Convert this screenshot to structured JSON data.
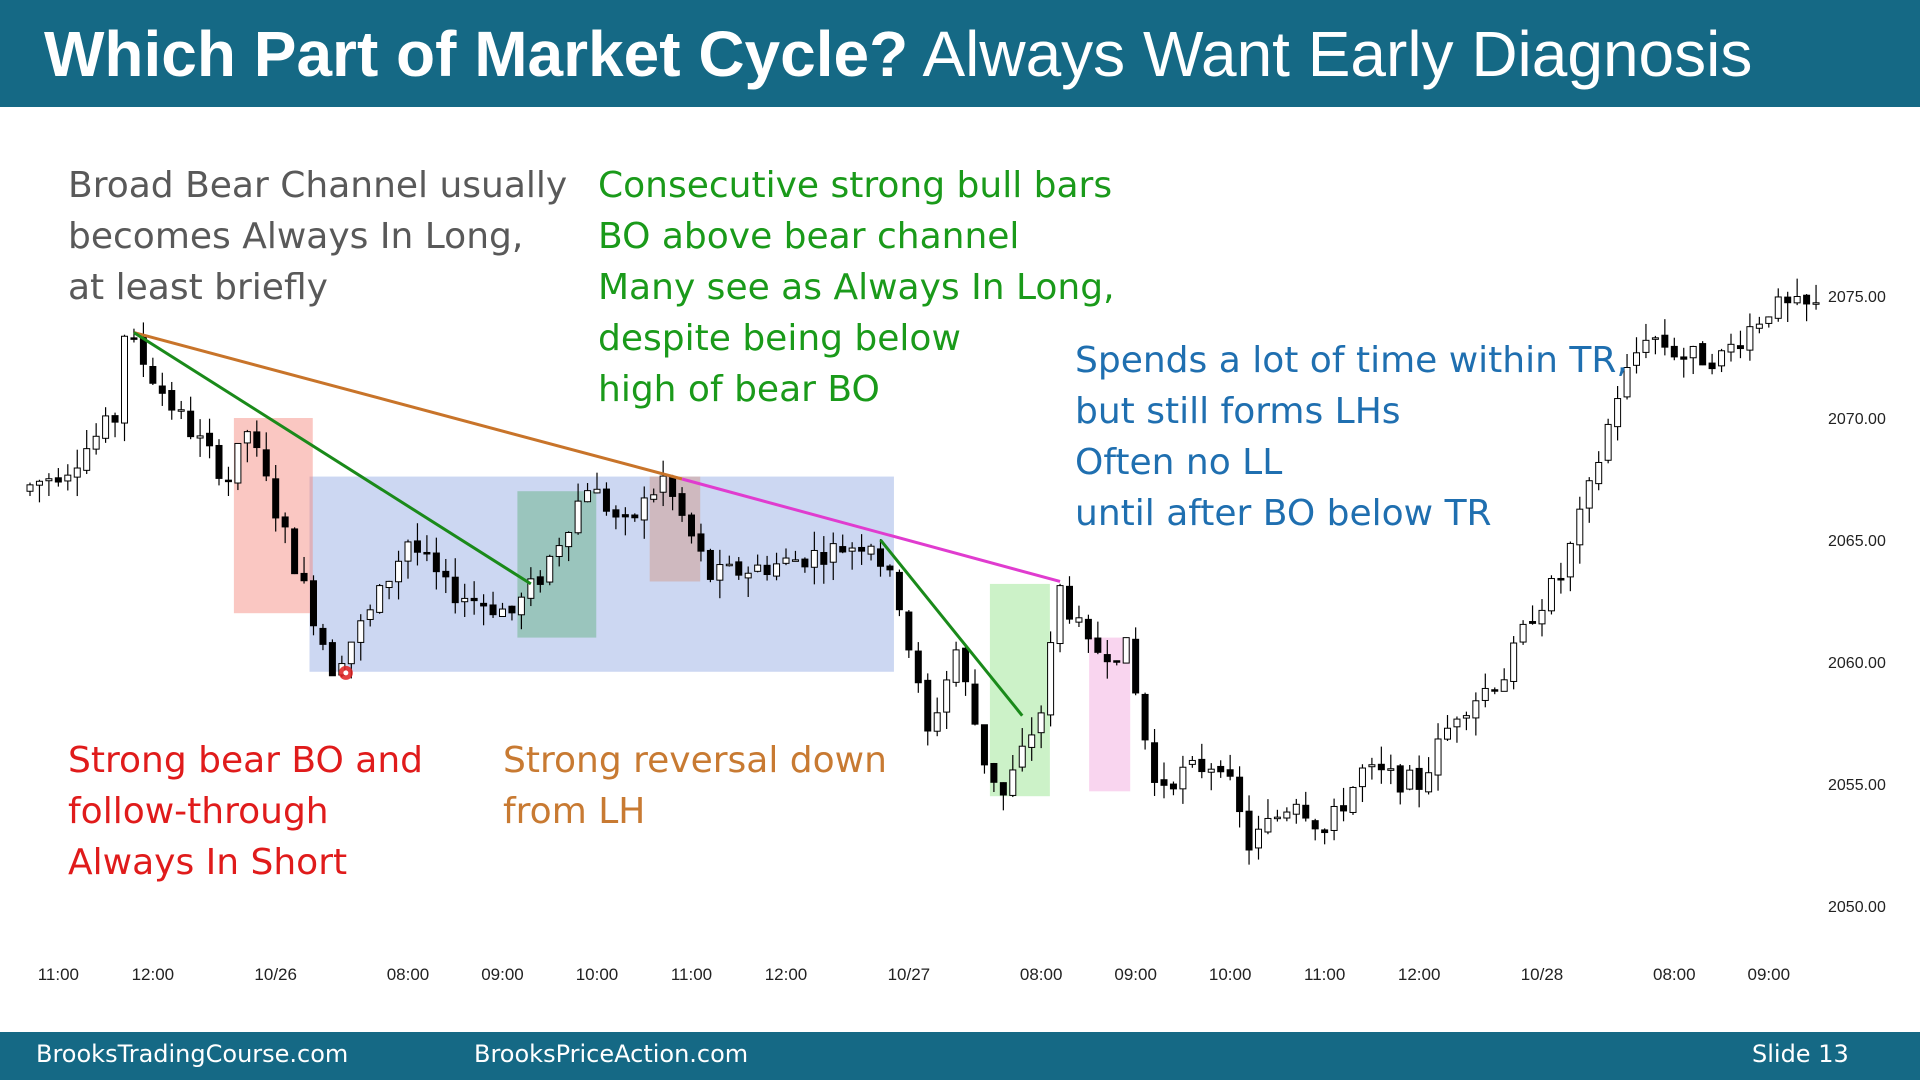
{
  "slide": {
    "title_bold": "Which Part of Market Cycle?",
    "title_rest": "Always Want Early Diagnosis",
    "footer_left": "BrooksTradingCourse.com",
    "footer_center": "BrooksPriceAction.com",
    "footer_right": "Slide  13"
  },
  "annotations": [
    {
      "lines": [
        "Broad Bear Channel usually",
        "becomes Always In Long,",
        "at least briefly"
      ],
      "color": "#595959"
    },
    {
      "lines": [
        "Consecutive strong bull bars",
        "BO above bear channel",
        "Many see as Always In Long,",
        "despite being below",
        "high of bear BO"
      ],
      "color": "#1a9a1a"
    },
    {
      "lines": [
        "Spends a lot of time within TR,",
        "but still forms LHs",
        "Often no LL",
        "until after BO below TR"
      ],
      "color": "#1f6fb0"
    },
    {
      "lines": [
        "Strong bear BO and",
        "follow-through",
        "Always In Short"
      ],
      "color": "#e01b1b"
    },
    {
      "lines": [
        "Strong reversal down",
        "from LH"
      ],
      "color": "#c87a32"
    }
  ],
  "chart_data": {
    "type": "candlestick",
    "title": "",
    "xlabel": "",
    "ylabel": "",
    "ylim": [
      2048,
      2080
    ],
    "yticks": [
      2050,
      2055,
      2060,
      2065,
      2070,
      2075
    ],
    "ytick_labels": [
      "2050.00",
      "2055.00",
      "2060.00",
      "2065.00",
      "2070.00",
      "2075.00"
    ],
    "xtick_labels": [
      "11:00",
      "12:00",
      "10/26",
      "08:00",
      "09:00",
      "10:00",
      "11:00",
      "12:00",
      "10/27",
      "08:00",
      "09:00",
      "10:00",
      "11:00",
      "12:00",
      "10/28",
      "08:00",
      "09:00"
    ],
    "xtick_bar_index": [
      3,
      13,
      26,
      40,
      50,
      60,
      70,
      80,
      93,
      107,
      117,
      127,
      137,
      147,
      160,
      174,
      184
    ],
    "bar_count": 190,
    "price_path_keypoints": [
      {
        "bar": 0,
        "price": 2067.0
      },
      {
        "bar": 5,
        "price": 2068.0
      },
      {
        "bar": 10,
        "price": 2070.0
      },
      {
        "bar": 11,
        "price": 2073.5
      },
      {
        "bar": 16,
        "price": 2070.5
      },
      {
        "bar": 22,
        "price": 2067.5
      },
      {
        "bar": 24,
        "price": 2069.5
      },
      {
        "bar": 30,
        "price": 2063.0
      },
      {
        "bar": 33,
        "price": 2059.8
      },
      {
        "bar": 37,
        "price": 2062.0
      },
      {
        "bar": 41,
        "price": 2065.0
      },
      {
        "bar": 45,
        "price": 2063.0
      },
      {
        "bar": 52,
        "price": 2062.0
      },
      {
        "bar": 55,
        "price": 2063.5
      },
      {
        "bar": 60,
        "price": 2067.3
      },
      {
        "bar": 64,
        "price": 2065.5
      },
      {
        "bar": 68,
        "price": 2067.5
      },
      {
        "bar": 73,
        "price": 2063.5
      },
      {
        "bar": 80,
        "price": 2064.0
      },
      {
        "bar": 85,
        "price": 2064.5
      },
      {
        "bar": 90,
        "price": 2065.0
      },
      {
        "bar": 93,
        "price": 2062.5
      },
      {
        "bar": 96,
        "price": 2057.0
      },
      {
        "bar": 99,
        "price": 2060.5
      },
      {
        "bar": 102,
        "price": 2056.0
      },
      {
        "bar": 104,
        "price": 2054.5
      },
      {
        "bar": 108,
        "price": 2058.0
      },
      {
        "bar": 110,
        "price": 2063.0
      },
      {
        "bar": 113,
        "price": 2060.5
      },
      {
        "bar": 117,
        "price": 2060.5
      },
      {
        "bar": 120,
        "price": 2055.0
      },
      {
        "bar": 127,
        "price": 2056.0
      },
      {
        "bar": 130,
        "price": 2052.5
      },
      {
        "bar": 135,
        "price": 2054.5
      },
      {
        "bar": 138,
        "price": 2053.0
      },
      {
        "bar": 142,
        "price": 2055.5
      },
      {
        "bar": 148,
        "price": 2055.0
      },
      {
        "bar": 152,
        "price": 2058.0
      },
      {
        "bar": 157,
        "price": 2059.5
      },
      {
        "bar": 160,
        "price": 2062.0
      },
      {
        "bar": 163,
        "price": 2063.5
      },
      {
        "bar": 166,
        "price": 2067.0
      },
      {
        "bar": 169,
        "price": 2071.0
      },
      {
        "bar": 172,
        "price": 2073.5
      },
      {
        "bar": 176,
        "price": 2072.5
      },
      {
        "bar": 180,
        "price": 2072.5
      },
      {
        "bar": 185,
        "price": 2074.5
      },
      {
        "bar": 189,
        "price": 2074.5
      }
    ],
    "overlay_lines": [
      {
        "name": "orange",
        "color": "#c8742a",
        "from": {
          "bar": 11,
          "price": 2073.5
        },
        "to": {
          "bar": 69,
          "price": 2067.5
        }
      },
      {
        "name": "green-1",
        "color": "#1a8a1a",
        "from": {
          "bar": 11,
          "price": 2073.5
        },
        "to": {
          "bar": 53,
          "price": 2063.2
        }
      },
      {
        "name": "magenta",
        "color": "#e03ccf",
        "from": {
          "bar": 69,
          "price": 2067.5
        },
        "to": {
          "bar": 109,
          "price": 2063.3
        }
      },
      {
        "name": "green-2",
        "color": "#1a8a1a",
        "from": {
          "bar": 90,
          "price": 2065.0
        },
        "to": {
          "bar": 105,
          "price": 2057.8
        }
      }
    ],
    "shaded_boxes": [
      {
        "name": "trading-range",
        "color": "rgba(120,150,220,0.38)",
        "bar_from": 30,
        "bar_to": 91,
        "price_low": 2059.6,
        "price_high": 2067.6
      },
      {
        "name": "bear-breakout",
        "color": "rgba(245,130,120,0.45)",
        "bar_from": 22,
        "bar_to": 29.5,
        "price_low": 2062.0,
        "price_high": 2070.0
      },
      {
        "name": "bull-bars",
        "color": "rgba(80,170,110,0.40)",
        "bar_from": 52,
        "bar_to": 59.5,
        "price_low": 2061.0,
        "price_high": 2067.0
      },
      {
        "name": "reversal",
        "color": "rgba(210,160,150,0.55)",
        "bar_from": 66,
        "bar_to": 70.5,
        "price_low": 2063.3,
        "price_high": 2067.6
      },
      {
        "name": "bull-breakout",
        "color": "rgba(120,220,110,0.38)",
        "bar_from": 102,
        "bar_to": 107.5,
        "price_low": 2054.5,
        "price_high": 2063.2
      },
      {
        "name": "bear-bars",
        "color": "rgba(240,150,215,0.40)",
        "bar_from": 112.5,
        "bar_to": 116,
        "price_low": 2054.7,
        "price_high": 2061.0
      }
    ],
    "marker": {
      "bar": 33,
      "price": 2059.8,
      "color": "#e02020"
    }
  }
}
